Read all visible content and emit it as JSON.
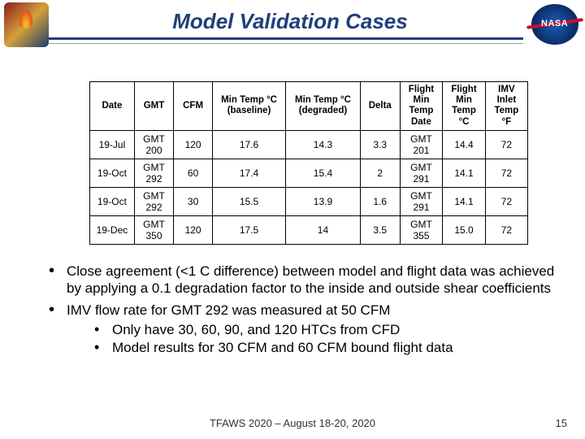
{
  "title": "Model Validation Cases",
  "table": {
    "headers": [
      "Date",
      "GMT",
      "CFM",
      "Min Temp °C (baseline)",
      "Min Temp °C (degraded)",
      "Delta",
      "Flight Min Temp Date",
      "Flight Min Temp °C",
      "IMV Inlet Temp °F"
    ],
    "rows": [
      [
        "19-Jul",
        "GMT 200",
        "120",
        "17.6",
        "14.3",
        "3.3",
        "GMT 201",
        "14.4",
        "72"
      ],
      [
        "19-Oct",
        "GMT 292",
        "60",
        "17.4",
        "15.4",
        "2",
        "GMT 291",
        "14.1",
        "72"
      ],
      [
        "19-Oct",
        "GMT 292",
        "30",
        "15.5",
        "13.9",
        "1.6",
        "GMT 291",
        "14.1",
        "72"
      ],
      [
        "19-Dec",
        "GMT 350",
        "120",
        "17.5",
        "14",
        "3.5",
        "GMT 355",
        "15.0",
        "72"
      ]
    ]
  },
  "bullets": [
    "Close agreement (<1 C difference) between model and flight data was achieved by applying a 0.1 degradation factor to the inside and outside shear coefficients",
    "IMV flow rate for GMT 292 was measured at 50 CFM"
  ],
  "subbullets": [
    "Only have 30, 60, 90, and 120 HTCs from CFD",
    "Model results for 30 CFM and 60 CFM bound flight data"
  ],
  "footer": "TFAWS 2020 – August 18-20, 2020",
  "pagenum": "15"
}
